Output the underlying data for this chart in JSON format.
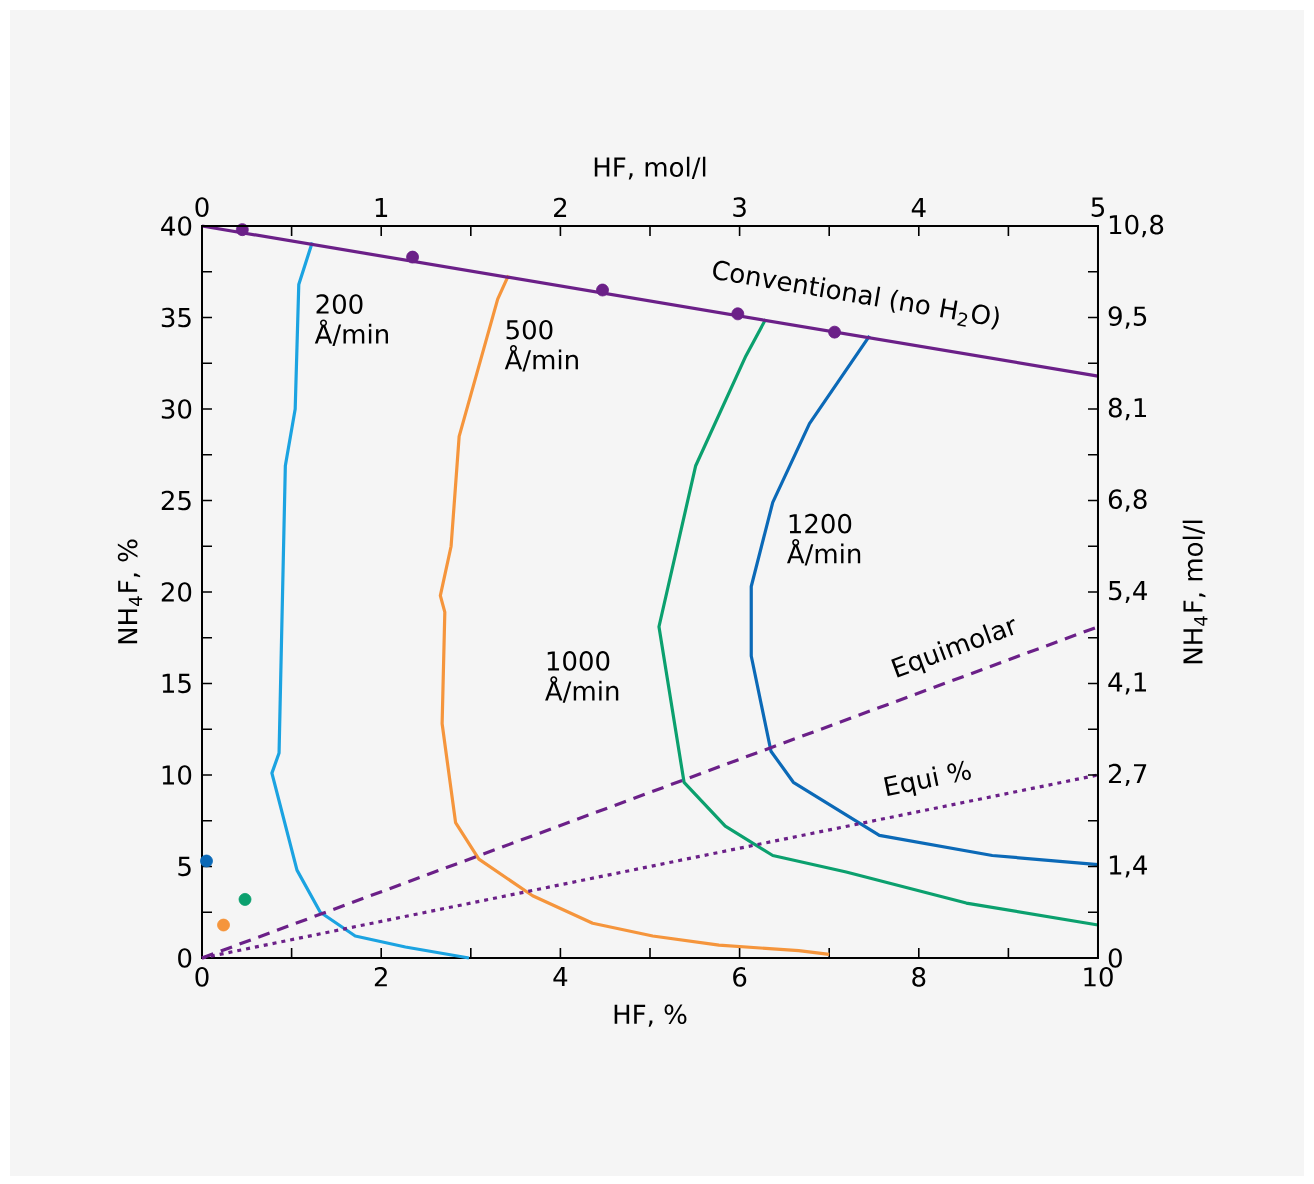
{
  "chart_data": {
    "type": "line",
    "xlabel": "HF, %",
    "ylabel": "NH$_{4}$F, %",
    "x2label": "HF, mol/l",
    "y2label": "NH$_{4}$F, mol/l",
    "xlim": [
      0,
      10
    ],
    "ylim": [
      0,
      40
    ],
    "x2lim": [
      0,
      5
    ],
    "y2lim": [
      0,
      10.8
    ],
    "xticks": [
      0,
      {
        "value": 1,
        "label": null
      },
      2,
      {
        "value": 3,
        "label": null
      },
      4,
      {
        "value": 5,
        "label": null
      },
      6,
      {
        "value": 7,
        "label": null
      },
      8,
      {
        "value": 9,
        "label": null
      },
      10
    ],
    "yticks": [
      0,
      {
        "value": 2.5,
        "label": null
      },
      5,
      {
        "value": 7.5,
        "label": null
      },
      10,
      {
        "value": 12.5,
        "label": null
      },
      15,
      {
        "value": 17.5,
        "label": null
      },
      20,
      {
        "value": 22.5,
        "label": null
      },
      25,
      {
        "value": 27.5,
        "label": null
      },
      30,
      {
        "value": 32.5,
        "label": null
      },
      35,
      {
        "value": 37.5,
        "label": null
      },
      40
    ],
    "x2ticks": [
      0,
      {
        "value": 0.5,
        "label": null
      },
      1,
      {
        "value": 1.5,
        "label": null
      },
      2,
      {
        "value": 2.5,
        "label": null
      },
      3,
      {
        "value": 3.5,
        "label": null
      },
      4,
      {
        "value": 4.5,
        "label": null
      },
      5
    ],
    "y2ticks": [
      0,
      {
        "value": 0.675,
        "label": null
      },
      {
        "value": 1.35,
        "label": "1,4"
      },
      {
        "value": 2.025,
        "label": null
      },
      {
        "value": 2.7,
        "label": "2,7"
      },
      {
        "value": 3.375,
        "label": null
      },
      {
        "value": 4.05,
        "label": "4,1"
      },
      {
        "value": 4.725,
        "label": null
      },
      {
        "value": 5.4,
        "label": "5,4"
      },
      {
        "value": 6.075,
        "label": null
      },
      {
        "value": 6.75,
        "label": "6,8"
      },
      {
        "value": 7.425,
        "label": null
      },
      {
        "value": 8.1,
        "label": "8,1"
      },
      {
        "value": 8.775,
        "label": null
      },
      {
        "value": 9.45,
        "label": "9,5"
      },
      {
        "value": 10.125,
        "label": null
      },
      {
        "value": 10.8,
        "label": "10,8"
      }
    ],
    "series": [
      {
        "type": "line",
        "name": "200 Å/min",
        "color": "#1ba3e1",
        "marker": "none",
        "line_style": "solid",
        "x": [
          1.23,
          1.08,
          1.04,
          0.93,
          0.86,
          0.78,
          1.06,
          1.32,
          1.71,
          2.27,
          2.98
        ],
        "values": [
          39.1,
          36.8,
          30.0,
          26.9,
          11.2,
          10.1,
          4.8,
          2.5,
          1.2,
          0.6,
          0
        ]
      },
      {
        "type": "line",
        "name": "500 Å/min",
        "color": "#f5953c",
        "marker": "none",
        "line_style": "solid",
        "x": [
          3.42,
          3.3,
          2.87,
          2.78,
          2.66,
          2.71,
          2.68,
          2.83,
          3.09,
          3.69,
          4.36,
          5.03,
          5.77,
          6.66,
          7.0
        ],
        "values": [
          37.3,
          36.0,
          28.5,
          22.5,
          19.8,
          18.9,
          12.8,
          7.4,
          5.4,
          3.4,
          1.9,
          1.2,
          0.7,
          0.4,
          0.2
        ]
      },
      {
        "type": "line",
        "name": "1000 Å/min",
        "color": "#0ba06e",
        "marker": "none",
        "line_style": "solid",
        "x": [
          6.29,
          6.07,
          5.51,
          5.1,
          5.38,
          5.84,
          6.37,
          7.19,
          8.53,
          10.0
        ],
        "values": [
          34.9,
          32.9,
          26.9,
          18.1,
          9.6,
          7.2,
          5.6,
          4.7,
          3.0,
          1.8
        ]
      },
      {
        "type": "line",
        "name": "1200 Å/min",
        "color": "#0b69b7",
        "marker": "none",
        "line_style": "solid",
        "x": [
          7.45,
          6.78,
          6.37,
          6.13,
          6.13,
          6.35,
          6.6,
          7.56,
          8.82,
          10.0
        ],
        "values": [
          34.0,
          29.2,
          24.9,
          20.3,
          16.5,
          11.3,
          9.6,
          6.7,
          5.6,
          5.1
        ]
      },
      {
        "type": "line",
        "name": "Conventional (no H$_{2}$O)",
        "color": "#6b2088",
        "marker": "none",
        "line_style": "solid",
        "x": [
          0,
          10
        ],
        "values": [
          40,
          31.8
        ]
      },
      {
        "type": "scatter",
        "color": "#6b2088",
        "marker": "circle",
        "x": [
          0.45,
          2.35,
          4.47,
          5.98,
          7.06
        ],
        "values": [
          39.8,
          38.3,
          36.5,
          35.2,
          34.2
        ]
      },
      {
        "type": "line",
        "name": "Equimolar",
        "color": "#6b2088",
        "marker": "none",
        "line_style": "dashed",
        "x": [
          0,
          10
        ],
        "values": [
          0,
          18.1
        ]
      },
      {
        "type": "line",
        "name": "Equi %",
        "color": "#6b2088",
        "marker": "none",
        "line_style": "dotted",
        "x": [
          0,
          10
        ],
        "values": [
          0,
          10
        ]
      },
      {
        "type": "scatter",
        "color": "#0b69b7",
        "marker": "circle",
        "x": [
          0.05
        ],
        "values": [
          5.3
        ]
      },
      {
        "type": "scatter",
        "color": "#0ba06e",
        "marker": "circle",
        "x": [
          0.48
        ],
        "values": [
          3.2
        ]
      },
      {
        "type": "scatter",
        "color": "#f5953c",
        "marker": "circle",
        "x": [
          0.24
        ],
        "values": [
          1.8
        ]
      }
    ]
  }
}
